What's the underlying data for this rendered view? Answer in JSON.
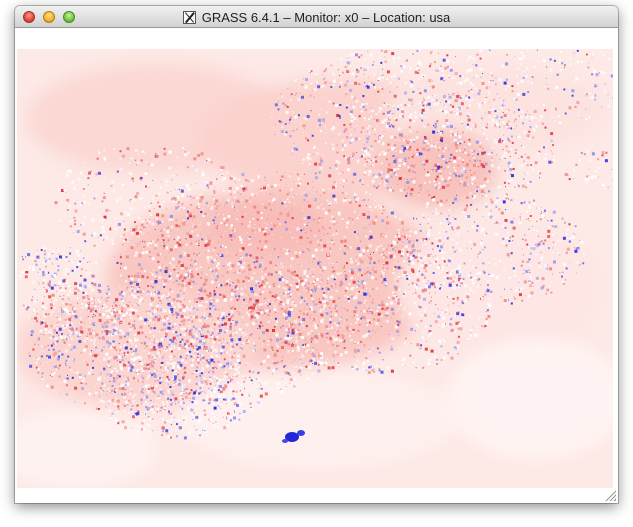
{
  "window": {
    "title": "GRASS 6.4.1 – Monitor: x0 – Location: usa",
    "icon": "x11-icon"
  },
  "controls": {
    "close": "close-button",
    "minimize": "minimize-button",
    "zoom": "zoom-button"
  },
  "colors": {
    "window_bg": "#ffffff",
    "map_base": "#fde9e6",
    "map_red": "#e8333a",
    "map_pink": "#f7b6b3",
    "map_blue": "#2b2fe0",
    "map_white": "#ffffff"
  }
}
